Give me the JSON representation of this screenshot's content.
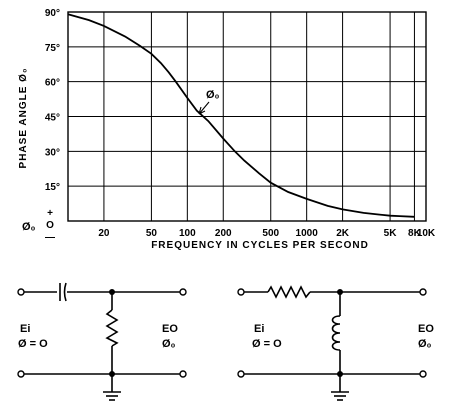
{
  "chart_data": {
    "type": "line",
    "x_scale": "log",
    "y_ticks": [
      "90°",
      "75°",
      "60°",
      "45°",
      "30°",
      "15°"
    ],
    "y_zero_label": {
      "phi": "Ø₀",
      "plus": "+",
      "zero": "O",
      "minus": "—"
    },
    "x_ticks": [
      "20",
      "50",
      "100",
      "200",
      "500",
      "1000",
      "2K",
      "5K",
      "8K",
      "10K"
    ],
    "xlabel": "FREQUENCY IN CYCLES PER SECOND",
    "ylabel": "PHASE ANGLE Ø₀",
    "xlim": [
      10,
      10000
    ],
    "ylim": [
      0,
      90
    ],
    "grid": true,
    "series": [
      {
        "name": "Ø₀",
        "x": [
          10,
          15,
          20,
          30,
          40,
          50,
          60,
          70,
          80,
          100,
          120,
          150,
          200,
          250,
          300,
          400,
          500,
          700,
          1000,
          1500,
          2000,
          3000,
          4000,
          5000,
          6000,
          8000
        ],
        "y": [
          89,
          86.5,
          84,
          79.5,
          75.5,
          72,
          68,
          64,
          60,
          53,
          47.5,
          43,
          35.5,
          30,
          26,
          20.5,
          16.5,
          12.5,
          9.5,
          6.5,
          5,
          3.5,
          2.8,
          2.3,
          2.1,
          1.8
        ]
      }
    ]
  },
  "circuits": {
    "left": {
      "input_label": "Ei",
      "input_phase": "Ø = O",
      "output_label": "EO",
      "output_phase": "Ø₀"
    },
    "right": {
      "input_label": "Ei",
      "input_phase": "Ø = O",
      "output_label": "EO",
      "output_phase": "Ø₀"
    }
  }
}
